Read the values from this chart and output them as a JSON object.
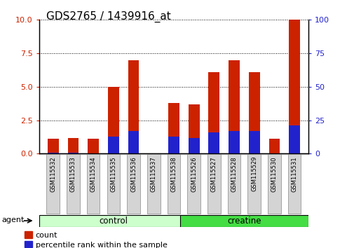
{
  "title": "GDS2765 / 1439916_at",
  "samples": [
    "GSM115532",
    "GSM115533",
    "GSM115534",
    "GSM115535",
    "GSM115536",
    "GSM115537",
    "GSM115538",
    "GSM115526",
    "GSM115527",
    "GSM115528",
    "GSM115529",
    "GSM115530",
    "GSM115531"
  ],
  "count_values": [
    1.1,
    1.2,
    1.1,
    5.0,
    7.0,
    0.05,
    3.8,
    3.7,
    6.1,
    7.0,
    6.1,
    1.1,
    10.0
  ],
  "percentile_values": [
    0.8,
    0.8,
    0.5,
    13.0,
    17.0,
    0.5,
    13.0,
    12.0,
    16.0,
    17.0,
    17.0,
    0.5,
    21.0
  ],
  "groups": [
    {
      "label": "control",
      "start": 0,
      "end": 7,
      "color": "#ccffcc"
    },
    {
      "label": "creatine",
      "start": 7,
      "end": 13,
      "color": "#44dd44"
    }
  ],
  "bar_color_red": "#cc2200",
  "bar_color_blue": "#2222cc",
  "ylim_left": [
    0,
    10
  ],
  "ylim_right": [
    0,
    100
  ],
  "yticks_left": [
    0,
    2.5,
    5.0,
    7.5,
    10.0
  ],
  "yticks_right": [
    0,
    25,
    50,
    75,
    100
  ],
  "agent_label": "agent",
  "legend_count": "count",
  "legend_percentile": "percentile rank within the sample",
  "title_fontsize": 11,
  "bar_width": 0.55
}
